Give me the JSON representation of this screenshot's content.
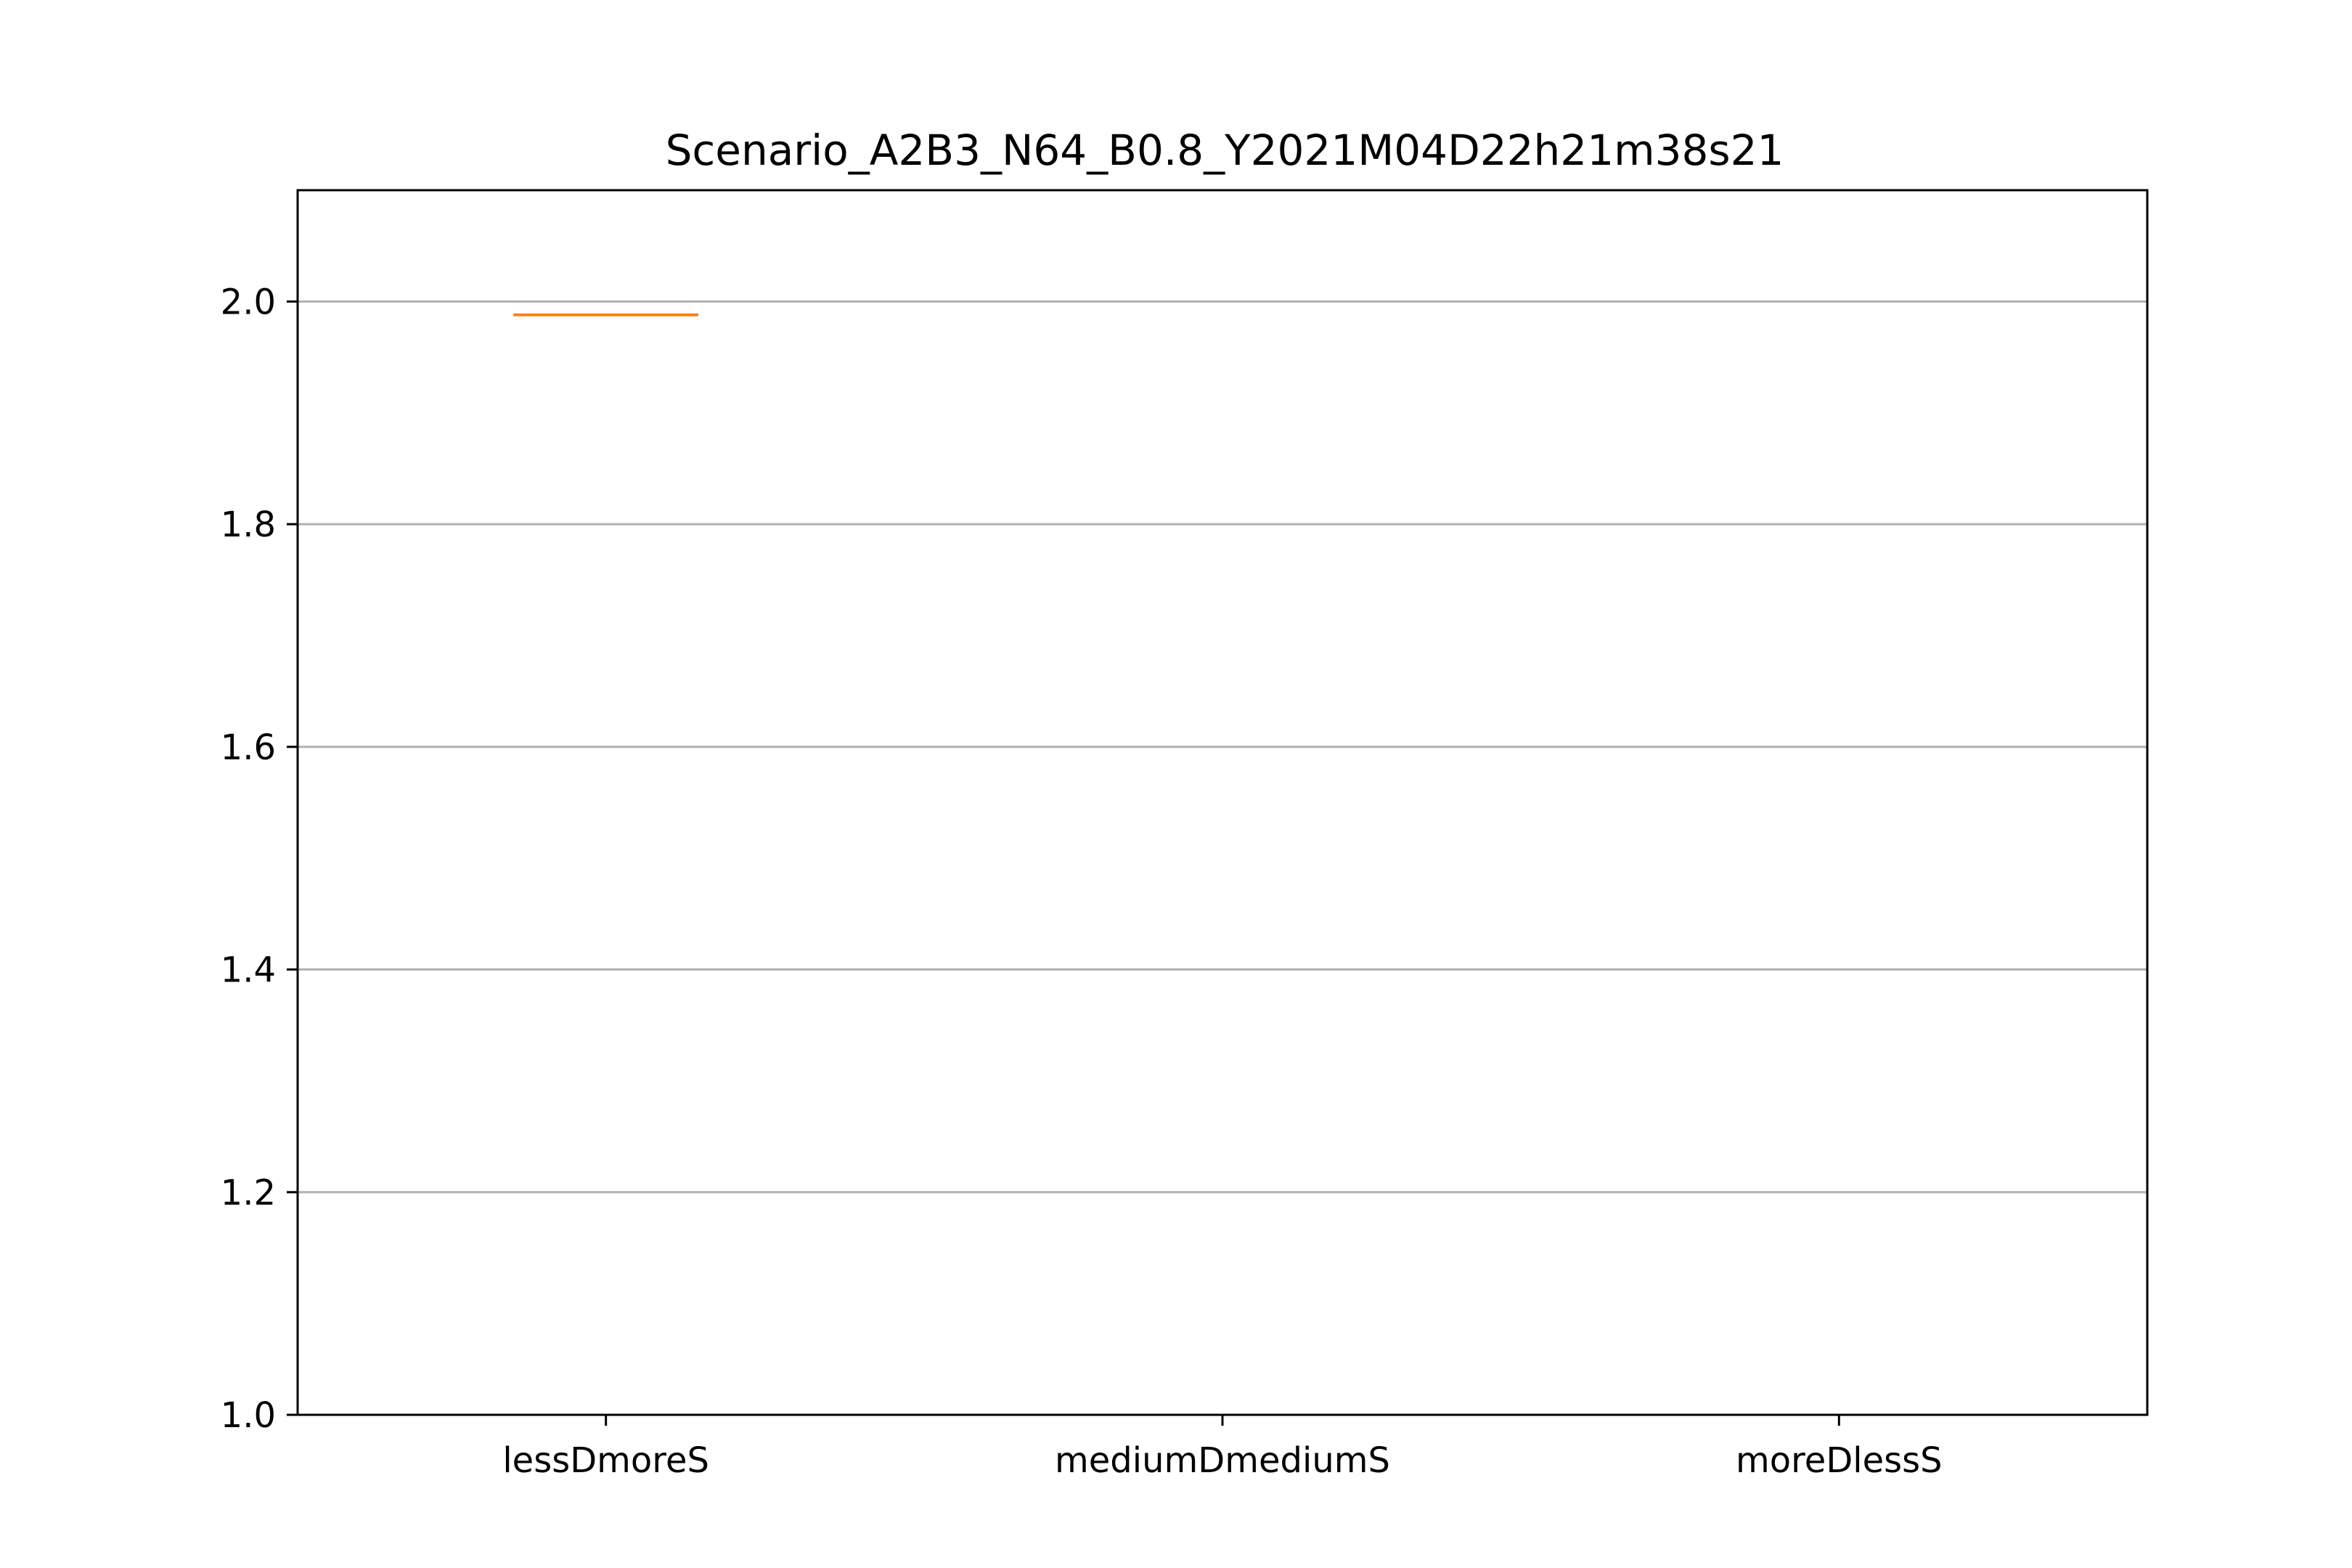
{
  "chart_data": {
    "type": "box",
    "title": "Scenario_A2B3_N64_B0.8_Y2021M04D22h21m38s21",
    "xlabel": "",
    "ylabel": "",
    "categories": [
      "lessDmoreS",
      "mediumDmediumS",
      "moreDlessS"
    ],
    "ylim": [
      1.0,
      2.1
    ],
    "yticks": [
      1.0,
      1.2,
      1.4,
      1.6,
      1.8,
      2.0
    ],
    "ytick_labels": [
      "1.0",
      "1.2",
      "1.4",
      "1.6",
      "1.8",
      "2.0"
    ],
    "grid": "horizontal",
    "series": [
      {
        "values": [
          1.988,
          null,
          null
        ]
      }
    ],
    "colors": {
      "median_line": "#ff7f0e",
      "grid": "#b0b0b0",
      "axes": "#000000",
      "background": "#ffffff"
    }
  }
}
